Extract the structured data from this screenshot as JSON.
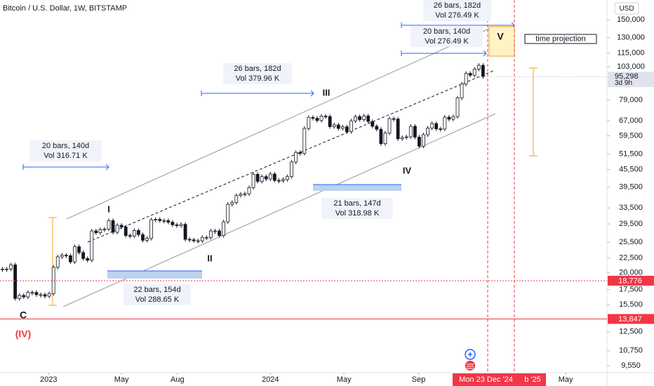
{
  "chart_data": {
    "type": "candlestick",
    "title": "Bitcoin / U.S. Dollar, 1W, BITSTAMP",
    "currency": "USD",
    "log_scale": true,
    "up_color": "#ffffff",
    "down_color": "#131722",
    "x": [
      "2022-10-17",
      "2022-10-24",
      "2022-10-31",
      "2022-11-07",
      "2022-11-14",
      "2022-11-21",
      "2022-11-28",
      "2022-12-05",
      "2022-12-12",
      "2022-12-19",
      "2022-12-26",
      "2023-01-02",
      "2023-01-09",
      "2023-01-16",
      "2023-01-23",
      "2023-01-30",
      "2023-02-06",
      "2023-02-13",
      "2023-02-20",
      "2023-02-27",
      "2023-03-06",
      "2023-03-13",
      "2023-03-20",
      "2023-03-27",
      "2023-04-03",
      "2023-04-10",
      "2023-04-17",
      "2023-04-24",
      "2023-05-01",
      "2023-05-08",
      "2023-05-15",
      "2023-05-22",
      "2023-05-29",
      "2023-06-05",
      "2023-06-12",
      "2023-06-19",
      "2023-06-26",
      "2023-07-03",
      "2023-07-10",
      "2023-07-17",
      "2023-07-24",
      "2023-07-31",
      "2023-08-07",
      "2023-08-14",
      "2023-08-21",
      "2023-08-28",
      "2023-09-04",
      "2023-09-11",
      "2023-09-18",
      "2023-09-25",
      "2023-10-02",
      "2023-10-09",
      "2023-10-16",
      "2023-10-23",
      "2023-10-30",
      "2023-11-06",
      "2023-11-13",
      "2023-11-20",
      "2023-11-27",
      "2023-12-04",
      "2023-12-11",
      "2023-12-18",
      "2023-12-25",
      "2024-01-01",
      "2024-01-08",
      "2024-01-15",
      "2024-01-22",
      "2024-01-29",
      "2024-02-05",
      "2024-02-12",
      "2024-02-19",
      "2024-02-26",
      "2024-03-04",
      "2024-03-11",
      "2024-03-18",
      "2024-03-25",
      "2024-04-01",
      "2024-04-08",
      "2024-04-15",
      "2024-04-22",
      "2024-04-29",
      "2024-05-06",
      "2024-05-13",
      "2024-05-20",
      "2024-05-27",
      "2024-06-03",
      "2024-06-10",
      "2024-06-17",
      "2024-06-24",
      "2024-07-01",
      "2024-07-08",
      "2024-07-15",
      "2024-07-22",
      "2024-07-29",
      "2024-08-05",
      "2024-08-12",
      "2024-08-19",
      "2024-08-26",
      "2024-09-02",
      "2024-09-09",
      "2024-09-16",
      "2024-09-23",
      "2024-09-30",
      "2024-10-07",
      "2024-10-14",
      "2024-10-21",
      "2024-10-28",
      "2024-11-04",
      "2024-11-11",
      "2024-11-18",
      "2024-11-25",
      "2024-12-02",
      "2024-12-09",
      "2024-12-16"
    ],
    "values": [
      20600,
      20600,
      21300,
      16300,
      16700,
      16500,
      17100,
      17100,
      16800,
      16800,
      16600,
      16950,
      20900,
      22700,
      23000,
      22900,
      21800,
      24600,
      23500,
      22400,
      22100,
      27900,
      27500,
      28200,
      28300,
      30300,
      27600,
      29200,
      28800,
      26900,
      26800,
      28000,
      27100,
      25900,
      26300,
      30500,
      30600,
      30300,
      30300,
      29900,
      29300,
      29100,
      29400,
      26100,
      26000,
      25800,
      25800,
      26500,
      26500,
      27900,
      27900,
      26900,
      30000,
      34500,
      35000,
      37000,
      37400,
      37500,
      39400,
      43800,
      41400,
      43000,
      42200,
      43900,
      41700,
      41600,
      42000,
      43000,
      48300,
      52100,
      51700,
      63100,
      68900,
      68400,
      67200,
      69600,
      69400,
      64000,
      64900,
      63100,
      63900,
      61500,
      67000,
      69300,
      67700,
      69700,
      66700,
      64200,
      62700,
      55900,
      60800,
      68200,
      68000,
      58100,
      58700,
      59000,
      64200,
      58900,
      54800,
      60000,
      63300,
      65600,
      62900,
      62800,
      69000,
      67900,
      69300,
      80400,
      89800,
      97800,
      96400,
      101200,
      104300,
      95298
    ],
    "xlim": [
      "2022-10-13",
      "2025-07-08"
    ],
    "xticks": [
      {
        "value": "2023-01-01",
        "label": "2023"
      },
      {
        "value": "2023-05-01",
        "label": "May"
      },
      {
        "value": "2023-08-01",
        "label": "Aug"
      },
      {
        "value": "2024-01-01",
        "label": "2024"
      },
      {
        "value": "2024-05-01",
        "label": "May"
      },
      {
        "value": "2024-09-01",
        "label": "Sep"
      },
      {
        "value": "2025-05-01",
        "label": "May"
      }
    ],
    "ylim": [
      9080,
      175400
    ],
    "yticks": [
      {
        "value": 150000,
        "label": "150,000"
      },
      {
        "value": 130000,
        "label": "130,000"
      },
      {
        "value": 115000,
        "label": "115,000"
      },
      {
        "value": 103000,
        "label": "103,000"
      },
      {
        "value": 79000,
        "label": "79,000"
      },
      {
        "value": 67000,
        "label": "67,000"
      },
      {
        "value": 59500,
        "label": "59,500"
      },
      {
        "value": 51500,
        "label": "51,500"
      },
      {
        "value": 45500,
        "label": "45,500"
      },
      {
        "value": 39500,
        "label": "39,500"
      },
      {
        "value": 33500,
        "label": "33,500"
      },
      {
        "value": 29500,
        "label": "29,500"
      },
      {
        "value": 25500,
        "label": "25,500"
      },
      {
        "value": 22500,
        "label": "22,500"
      },
      {
        "value": 20000,
        "label": "20,000"
      },
      {
        "value": 17500,
        "label": "17,500"
      },
      {
        "value": 15500,
        "label": "15,500"
      },
      {
        "value": 12500,
        "label": "12,500"
      },
      {
        "value": 10750,
        "label": "10,750"
      },
      {
        "value": 9550,
        "label": "9,550"
      }
    ],
    "levels": [
      {
        "value": 18776,
        "label": "18,776",
        "style": "dotted"
      },
      {
        "value": 13847,
        "label": "13,847",
        "style": "solid"
      }
    ],
    "level_color": "#f23645",
    "last_price": {
      "value": 95298,
      "label": "95,298",
      "countdown": "3d 9h"
    },
    "time_labels": [
      "Mon 23 Dec '24",
      "b '25"
    ],
    "waves": [
      "I",
      "II",
      "III",
      "IV",
      "V",
      "C",
      "(IV)"
    ],
    "measures": [
      [
        "20 bars, 140d",
        "Vol 316.71 K"
      ],
      [
        "26 bars, 182d",
        "Vol 379.96 K"
      ],
      [
        "22 bars, 154d",
        "Vol 288.65 K"
      ],
      [
        "21 bars, 147d",
        "Vol 318.98 K"
      ],
      [
        "26 bars, 182d",
        "Vol 276.49 K"
      ],
      [
        "20 bars, 140d",
        "Vol 276.49 K"
      ]
    ],
    "note": "time projection"
  }
}
